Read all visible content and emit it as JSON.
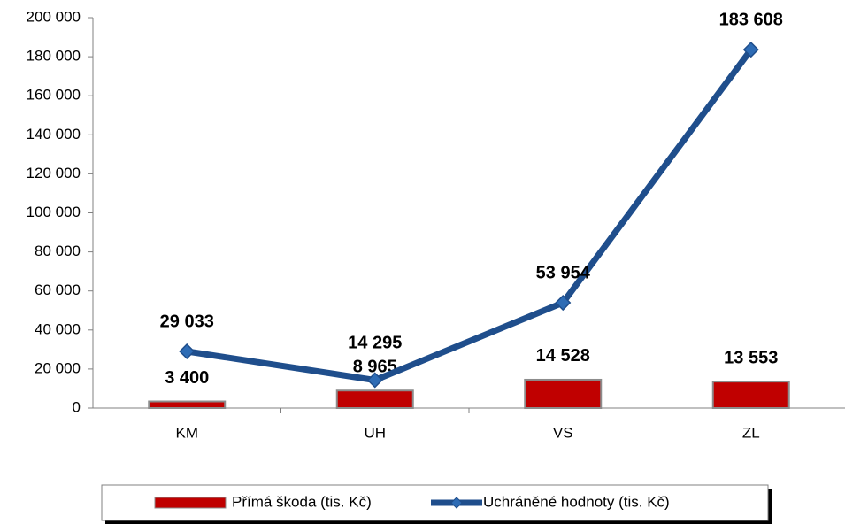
{
  "chart_data": {
    "type": "bar_line",
    "categories": [
      "KM",
      "UH",
      "VS",
      "ZL"
    ],
    "series": [
      {
        "name": "Přímá škoda (tis. Kč)",
        "type": "bar",
        "color": "#c00000",
        "values": [
          3400,
          8965,
          14528,
          13553
        ],
        "value_labels": [
          "3 400",
          "8 965",
          "14 528",
          "13 553"
        ]
      },
      {
        "name": "Uchráněné hodnoty (tis. Kč)",
        "type": "line",
        "color": "#1f4e8c",
        "values": [
          29033,
          14295,
          53954,
          183608
        ],
        "value_labels": [
          "29 033",
          "14 295",
          "53 954",
          "183 608"
        ]
      }
    ],
    "ylim": [
      0,
      200000
    ],
    "yticks": [
      0,
      {
        "value": 20000,
        "label": "20 000"
      },
      {
        "value": 40000,
        "label": "40 000"
      },
      {
        "value": 60000,
        "label": "60 000"
      },
      {
        "value": 80000,
        "label": "80 000"
      },
      {
        "value": 100000,
        "label": "100 000"
      },
      {
        "value": 120000,
        "label": "120 000"
      },
      {
        "value": 140000,
        "label": "140 000"
      },
      {
        "value": 160000,
        "label": "160 000"
      },
      {
        "value": 180000,
        "label": "180 000"
      },
      {
        "value": 200000,
        "label": "200 000"
      }
    ],
    "grid": false,
    "legend": "bottom"
  }
}
